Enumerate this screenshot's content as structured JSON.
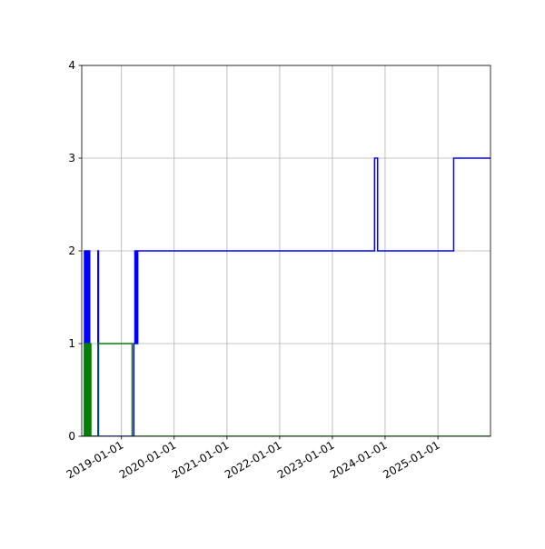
{
  "chart_data": {
    "type": "line",
    "title": "",
    "xlabel": "",
    "ylabel": "",
    "x_is_date": true,
    "xlim": [
      "2018-04-01",
      "2025-12-31"
    ],
    "ylim": [
      0,
      4
    ],
    "grid": true,
    "legend": "none",
    "xticks": [
      "2019-01-01",
      "2020-01-01",
      "2021-01-01",
      "2022-01-01",
      "2023-01-01",
      "2024-01-01",
      "2025-01-01"
    ],
    "yticks": [
      0,
      1,
      2,
      3,
      4
    ],
    "series": [
      {
        "color": "#0000ff",
        "step": "post",
        "x": [
          "2018-04-01",
          "2018-04-20",
          "2018-04-24",
          "2018-04-28",
          "2018-05-02",
          "2018-05-06",
          "2018-05-10",
          "2018-05-14",
          "2018-05-18",
          "2018-05-22",
          "2018-05-26",
          "2018-07-22",
          "2018-07-26",
          "2019-03-28",
          "2019-04-04",
          "2019-04-08",
          "2019-04-12",
          "2019-04-16",
          "2019-04-24",
          "2023-10-20",
          "2023-11-10",
          "2025-04-20",
          "2025-12-31"
        ],
        "values": [
          0,
          2,
          0,
          2,
          0,
          2,
          0,
          2,
          0,
          2,
          0,
          2,
          0,
          1,
          2,
          1,
          2,
          1,
          2,
          3,
          2,
          3,
          3
        ]
      },
      {
        "color": "#008000",
        "step": "post",
        "x": [
          "2018-04-01",
          "2018-04-20",
          "2018-04-24",
          "2018-04-28",
          "2018-05-02",
          "2018-05-06",
          "2018-05-10",
          "2018-05-14",
          "2018-05-18",
          "2018-05-22",
          "2018-05-26",
          "2018-05-30",
          "2018-06-03",
          "2018-07-22",
          "2019-03-16",
          "2025-12-31"
        ],
        "values": [
          0,
          1,
          0,
          1,
          0,
          1,
          0,
          1,
          0,
          1,
          0,
          1,
          0,
          1,
          0,
          0
        ]
      }
    ]
  }
}
